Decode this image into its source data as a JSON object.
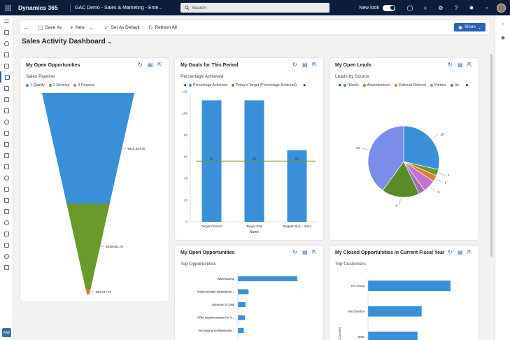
{
  "topbar": {
    "app_name": "Dynamics 365",
    "area_title": "GAC Demo - Sales & Marketing - Ente...",
    "search_placeholder": "Search",
    "new_look_label": "New look"
  },
  "commandbar": {
    "save_as": "Save As",
    "new": "New",
    "set_default": "Set As Default",
    "refresh_all": "Refresh All",
    "share": "Share"
  },
  "dashboard": {
    "title": "Sales Activity Dashboard"
  },
  "nav_badge": "NW",
  "colors": {
    "blue": "#3b8ed8",
    "green": "#6b9a2c",
    "orange": "#e07b39",
    "navy": "#0b1d3a",
    "accent": "#2c5fb5"
  },
  "cards": {
    "open_opps": {
      "title": "My Open Opportunities",
      "subtitle": "Sales Pipeline",
      "legend": [
        "1-Qualify",
        "2-Develop",
        "3-Propose"
      ],
      "labels": [
        "€515,644.40",
        "€629,821.00",
        "€54,817.70"
      ]
    },
    "goals": {
      "title": "My Goals for This Period",
      "subtitle": "Percentage Achieved",
      "legend": [
        "Percentage Achieved",
        "Today's Target (Percentage Achieved)"
      ],
      "xlabel": "Name"
    },
    "leads": {
      "title": "My Open Leads",
      "subtitle": "Leads by Source",
      "legend": [
        "(blank)",
        "Advertisement",
        "External Referral",
        "Partner",
        "Se"
      ]
    },
    "top_opps": {
      "title": "My Open Opportunities",
      "subtitle": "Top Opportunities"
    },
    "closed_opps": {
      "title": "My Closed Opportunities in Current Fiscal Year",
      "subtitle": "Top Customers",
      "ylabel": "Customer"
    }
  },
  "chart_data": [
    {
      "type": "funnel",
      "title": "Sales Pipeline",
      "categories": [
        "1-Qualify",
        "2-Develop",
        "3-Propose"
      ],
      "values": [
        515644.4,
        629821.0,
        54817.7
      ],
      "value_labels": [
        "€515,644.40",
        "€629,821.00",
        "€54,817.70"
      ],
      "colors": [
        "#3b8ed8",
        "#6b9a2c",
        "#e07b39"
      ]
    },
    {
      "type": "bar",
      "title": "Percentage Achieved",
      "categories": [
        "Target Charon",
        "Target Rob",
        "Targets BU1 - 2024"
      ],
      "series": [
        {
          "name": "Percentage Achieved",
          "values": [
            112,
            112,
            66
          ]
        },
        {
          "name": "Today's Target (Percentage Achieved)",
          "values": [
            56,
            56,
            56
          ]
        }
      ],
      "xlabel": "Name",
      "ylim": [
        0,
        120
      ],
      "yticks": [
        0,
        20,
        40,
        60,
        80,
        100,
        120
      ],
      "target_labels": [
        "56",
        "56",
        "56"
      ]
    },
    {
      "type": "pie",
      "title": "Leads by Source",
      "slices": [
        {
          "label": "10",
          "value": 10,
          "color": "#3b8ed8"
        },
        {
          "label": "1",
          "value": 1,
          "color": "#6b9a2c"
        },
        {
          "label": "1",
          "value": 1,
          "color": "#e07b39"
        },
        {
          "label": "2",
          "value": 2,
          "color": "#c374c9"
        },
        {
          "label": "",
          "value": 1,
          "color": "#9b6fb0"
        },
        {
          "label": "6",
          "value": 6,
          "color": "#5b8a2a"
        },
        {
          "label": "14",
          "value": 14,
          "color": "#7b8de8"
        }
      ]
    },
    {
      "type": "hbar",
      "title": "Top Opportunities",
      "categories": [
        "Warehousing",
        "Implementatie datawareho...",
        "Interesse in CRM",
        "CRM Implementation for N...",
        "Vervanging ventilatiesyste..."
      ],
      "values": [
        100,
        18,
        13,
        12,
        10
      ]
    },
    {
      "type": "hbar",
      "title": "Top Customers",
      "categories": [
        "HC Groep",
        "Van Oirschot",
        "EMG"
      ],
      "values": [
        100,
        65,
        60
      ],
      "ylabel": "Customer"
    }
  ]
}
